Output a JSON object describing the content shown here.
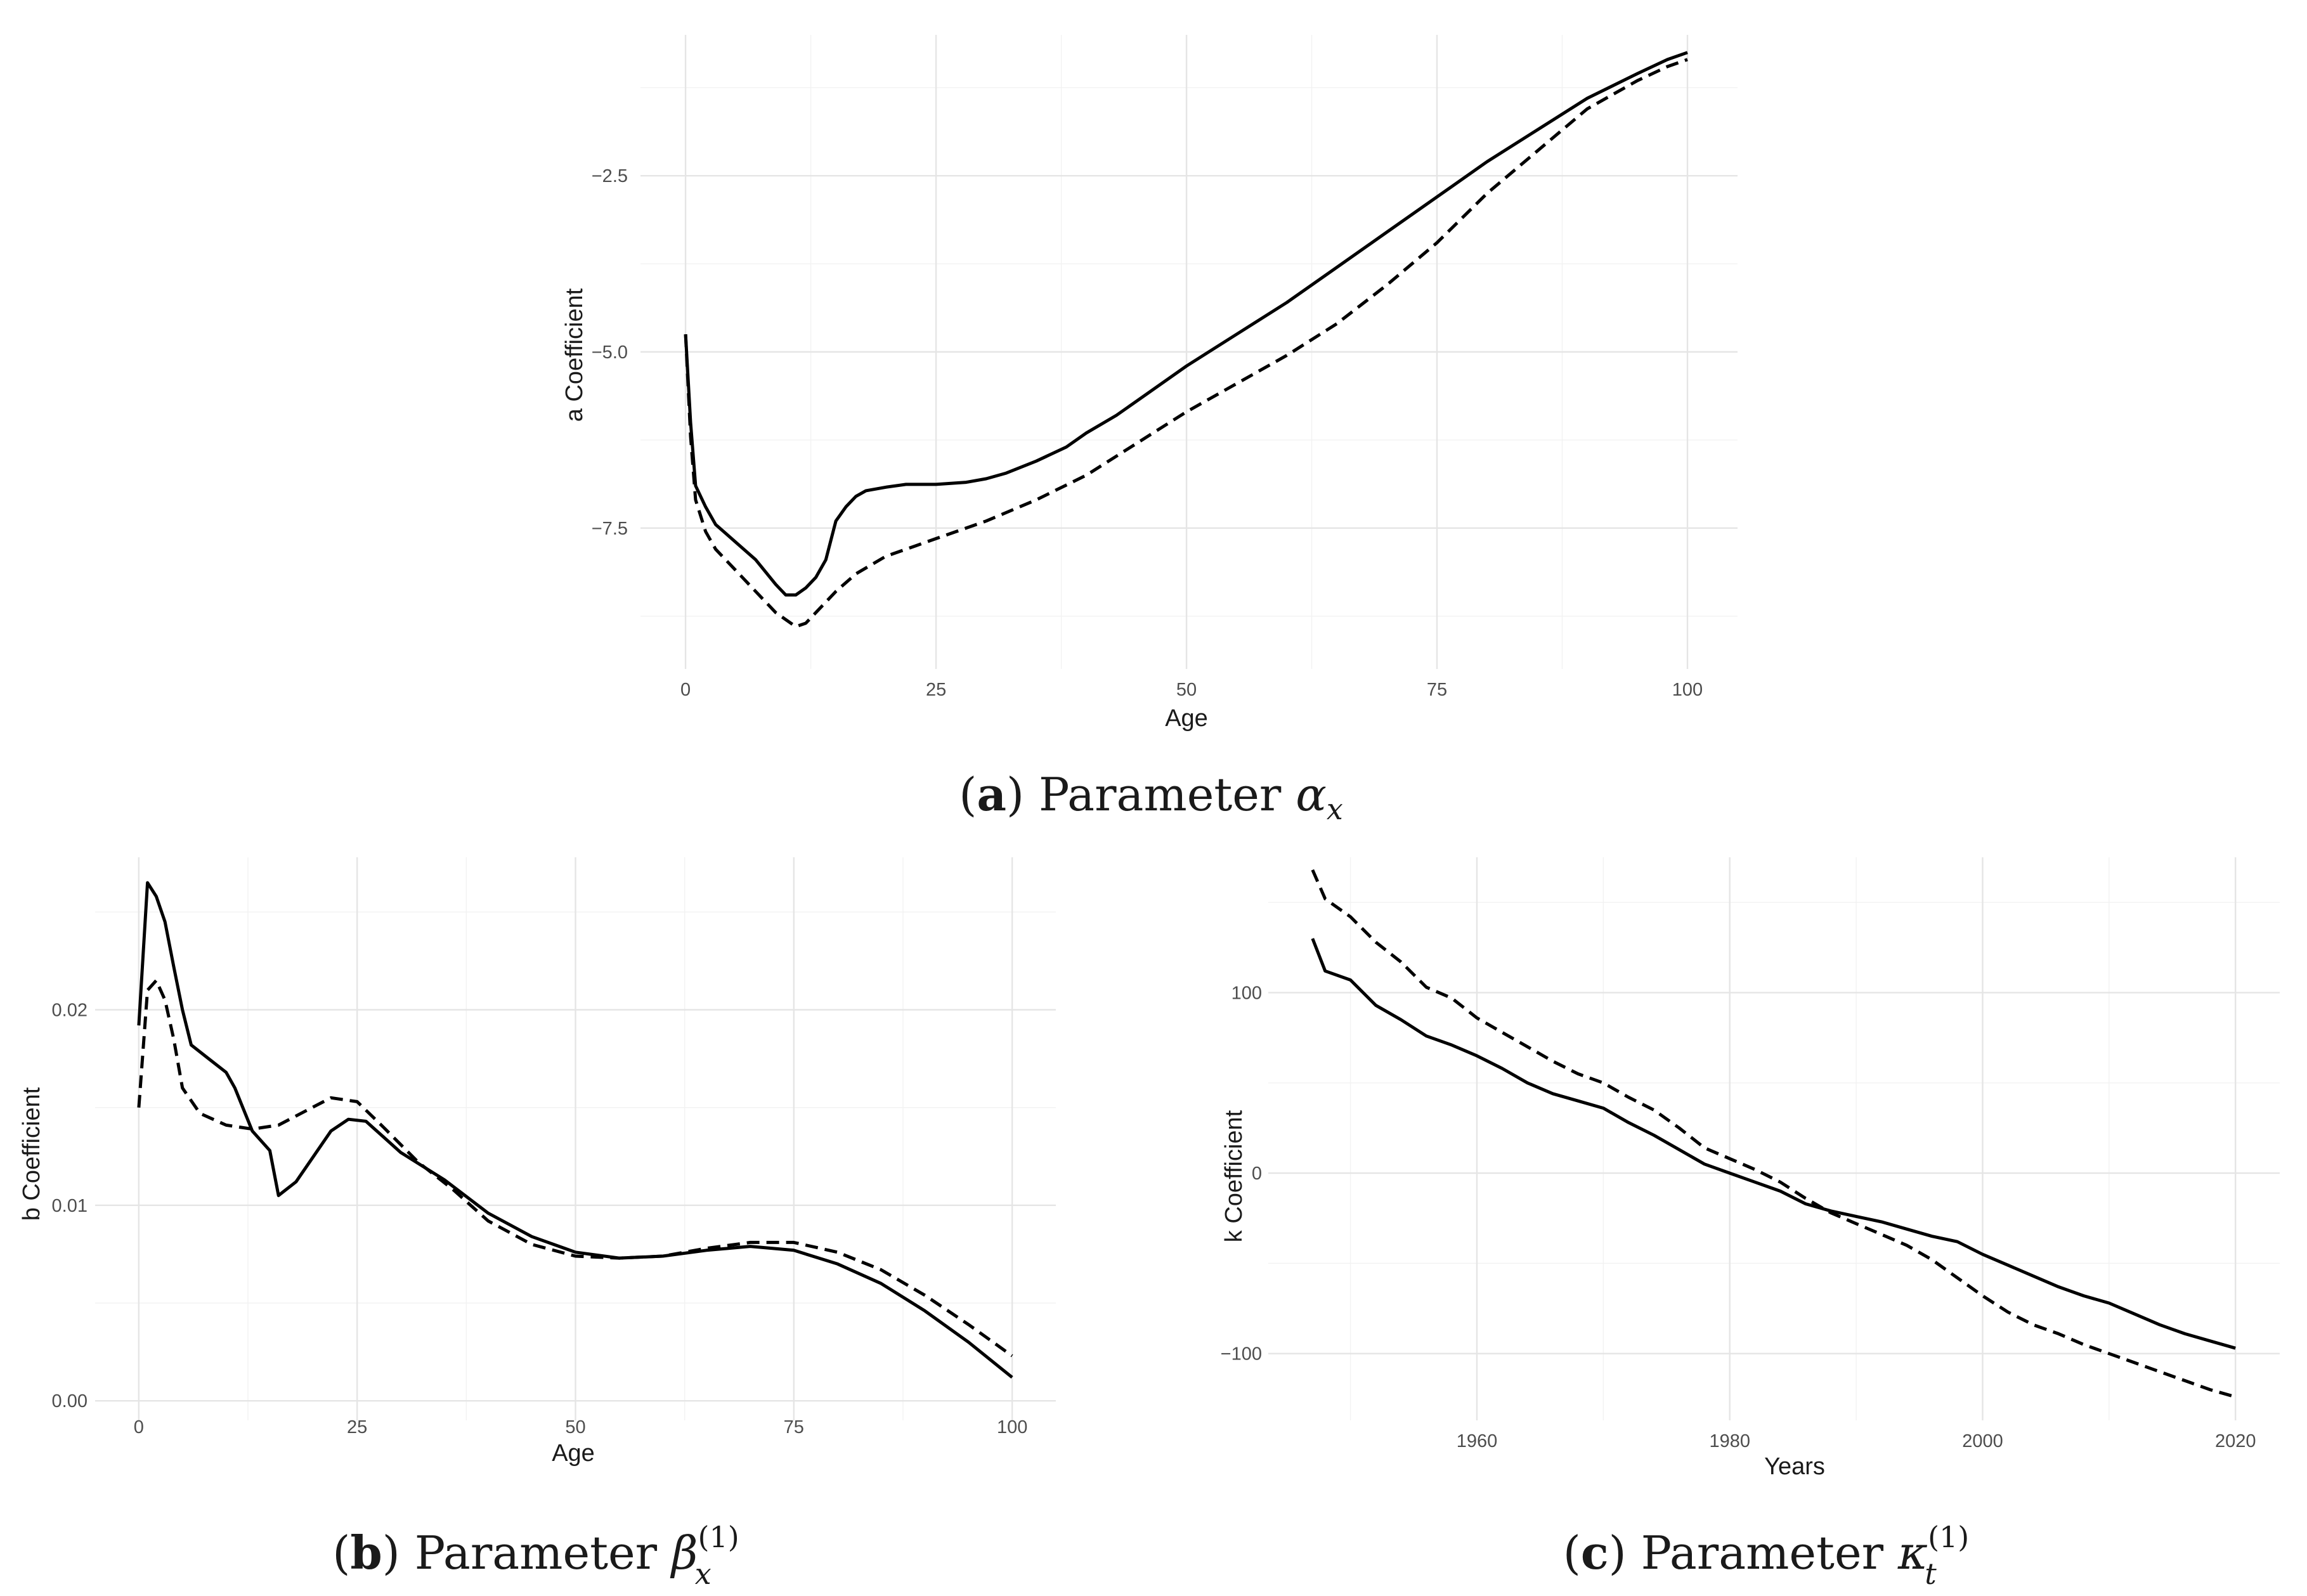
{
  "chart_data": [
    {
      "id": "a",
      "type": "line",
      "caption_letter": "a",
      "caption_text": "Parameter",
      "caption_symbol": "α",
      "caption_sub": "x",
      "caption_sup": "",
      "xlabel": "Age",
      "ylabel": "a Coefficient",
      "xlim": [
        -4.5,
        105
      ],
      "ylim": [
        -9.5,
        -0.5
      ],
      "x_ticks": [
        0,
        25,
        50,
        75,
        100
      ],
      "x_tick_labels": [
        "0",
        "25",
        "50",
        "75",
        "100"
      ],
      "y_ticks": [
        -2.5,
        -5.0,
        -7.5
      ],
      "y_tick_labels": [
        "−2.5",
        "−5.0",
        "−7.5"
      ],
      "grid": true,
      "series": [
        {
          "style": "solid",
          "points": [
            [
              0,
              -4.75
            ],
            [
              0.5,
              -6.0
            ],
            [
              1,
              -6.9
            ],
            [
              2,
              -7.2
            ],
            [
              3,
              -7.45
            ],
            [
              5,
              -7.7
            ],
            [
              7,
              -7.95
            ],
            [
              9,
              -8.3
            ],
            [
              10,
              -8.45
            ],
            [
              11,
              -8.45
            ],
            [
              12,
              -8.35
            ],
            [
              13,
              -8.2
            ],
            [
              14,
              -7.95
            ],
            [
              15,
              -7.4
            ],
            [
              16,
              -7.2
            ],
            [
              17,
              -7.05
            ],
            [
              18,
              -6.97
            ],
            [
              20,
              -6.92
            ],
            [
              22,
              -6.88
            ],
            [
              25,
              -6.88
            ],
            [
              28,
              -6.85
            ],
            [
              30,
              -6.8
            ],
            [
              32,
              -6.72
            ],
            [
              35,
              -6.55
            ],
            [
              38,
              -6.35
            ],
            [
              40,
              -6.15
            ],
            [
              43,
              -5.9
            ],
            [
              46,
              -5.6
            ],
            [
              50,
              -5.2
            ],
            [
              55,
              -4.75
            ],
            [
              60,
              -4.3
            ],
            [
              65,
              -3.8
            ],
            [
              70,
              -3.3
            ],
            [
              75,
              -2.8
            ],
            [
              80,
              -2.3
            ],
            [
              85,
              -1.85
            ],
            [
              90,
              -1.4
            ],
            [
              95,
              -1.05
            ],
            [
              98,
              -0.85
            ],
            [
              100,
              -0.75
            ]
          ]
        },
        {
          "style": "dashed",
          "points": [
            [
              0,
              -4.75
            ],
            [
              0.5,
              -6.2
            ],
            [
              1,
              -7.1
            ],
            [
              2,
              -7.55
            ],
            [
              3,
              -7.8
            ],
            [
              5,
              -8.1
            ],
            [
              7,
              -8.4
            ],
            [
              9,
              -8.7
            ],
            [
              10,
              -8.8
            ],
            [
              11,
              -8.9
            ],
            [
              12,
              -8.85
            ],
            [
              13,
              -8.7
            ],
            [
              15,
              -8.4
            ],
            [
              17,
              -8.15
            ],
            [
              20,
              -7.9
            ],
            [
              23,
              -7.75
            ],
            [
              25,
              -7.65
            ],
            [
              30,
              -7.4
            ],
            [
              35,
              -7.1
            ],
            [
              40,
              -6.75
            ],
            [
              45,
              -6.3
            ],
            [
              50,
              -5.85
            ],
            [
              55,
              -5.45
            ],
            [
              60,
              -5.05
            ],
            [
              65,
              -4.6
            ],
            [
              70,
              -4.05
            ],
            [
              75,
              -3.45
            ],
            [
              80,
              -2.75
            ],
            [
              85,
              -2.15
            ],
            [
              90,
              -1.55
            ],
            [
              95,
              -1.15
            ],
            [
              98,
              -0.95
            ],
            [
              100,
              -0.85
            ]
          ]
        }
      ]
    },
    {
      "id": "b",
      "type": "line",
      "caption_letter": "b",
      "caption_text": "Parameter",
      "caption_symbol": "β",
      "caption_sub": "x",
      "caption_sup": "(1)",
      "xlabel": "Age",
      "ylabel": "b Coefficient",
      "xlim": [
        -5,
        105
      ],
      "ylim": [
        -0.001,
        0.0278
      ],
      "x_ticks": [
        0,
        25,
        50,
        75,
        100
      ],
      "x_tick_labels": [
        "0",
        "25",
        "50",
        "75",
        "100"
      ],
      "y_ticks": [
        0.0,
        0.01,
        0.02
      ],
      "y_tick_labels": [
        "0.00",
        "0.01",
        "0.02"
      ],
      "grid": true,
      "series": [
        {
          "style": "solid",
          "points": [
            [
              0,
              0.0192
            ],
            [
              1,
              0.0265
            ],
            [
              2,
              0.0258
            ],
            [
              3,
              0.0245
            ],
            [
              4,
              0.0222
            ],
            [
              5,
              0.02
            ],
            [
              6,
              0.0182
            ],
            [
              8,
              0.0175
            ],
            [
              10,
              0.0168
            ],
            [
              11,
              0.016
            ],
            [
              13,
              0.0138
            ],
            [
              15,
              0.0128
            ],
            [
              16,
              0.0105
            ],
            [
              18,
              0.0112
            ],
            [
              20,
              0.0125
            ],
            [
              22,
              0.0138
            ],
            [
              24,
              0.0144
            ],
            [
              26,
              0.0143
            ],
            [
              28,
              0.0135
            ],
            [
              30,
              0.0127
            ],
            [
              35,
              0.0113
            ],
            [
              40,
              0.0096
            ],
            [
              45,
              0.0084
            ],
            [
              50,
              0.0076
            ],
            [
              55,
              0.0073
            ],
            [
              60,
              0.0074
            ],
            [
              65,
              0.0077
            ],
            [
              70,
              0.0079
            ],
            [
              75,
              0.0077
            ],
            [
              80,
              0.007
            ],
            [
              85,
              0.006
            ],
            [
              90,
              0.0046
            ],
            [
              95,
              0.003
            ],
            [
              100,
              0.0012
            ]
          ]
        },
        {
          "style": "dashed",
          "points": [
            [
              0,
              0.015
            ],
            [
              1,
              0.021
            ],
            [
              2,
              0.0215
            ],
            [
              3,
              0.0205
            ],
            [
              4,
              0.0185
            ],
            [
              5,
              0.016
            ],
            [
              7,
              0.0147
            ],
            [
              10,
              0.0141
            ],
            [
              13,
              0.0139
            ],
            [
              16,
              0.0141
            ],
            [
              19,
              0.0148
            ],
            [
              22,
              0.0155
            ],
            [
              25,
              0.0153
            ],
            [
              28,
              0.014
            ],
            [
              32,
              0.0122
            ],
            [
              36,
              0.0108
            ],
            [
              40,
              0.0092
            ],
            [
              45,
              0.008
            ],
            [
              50,
              0.0074
            ],
            [
              55,
              0.0073
            ],
            [
              60,
              0.0074
            ],
            [
              65,
              0.0078
            ],
            [
              70,
              0.0081
            ],
            [
              75,
              0.0081
            ],
            [
              80,
              0.0076
            ],
            [
              85,
              0.0067
            ],
            [
              90,
              0.0054
            ],
            [
              95,
              0.0039
            ],
            [
              100,
              0.0023
            ]
          ]
        }
      ]
    },
    {
      "id": "c",
      "type": "line",
      "caption_letter": "c",
      "caption_text": "Parameter",
      "caption_symbol": "κ",
      "caption_sub": "t",
      "caption_sup": "(1)",
      "xlabel": "Years",
      "ylabel": "k Coefficient",
      "xlim": [
        1943.5,
        2023.5
      ],
      "ylim": [
        -137,
        175
      ],
      "x_ticks": [
        1960,
        1980,
        2000,
        2020
      ],
      "x_tick_labels": [
        "1960",
        "1980",
        "2000",
        "2020"
      ],
      "y_ticks": [
        -100,
        0,
        100
      ],
      "y_tick_labels": [
        "−100",
        "0",
        "100"
      ],
      "grid": true,
      "series": [
        {
          "style": "solid",
          "points": [
            [
              1947,
              130
            ],
            [
              1948,
              112
            ],
            [
              1950,
              107
            ],
            [
              1952,
              93
            ],
            [
              1954,
              85
            ],
            [
              1956,
              76
            ],
            [
              1958,
              71
            ],
            [
              1960,
              65
            ],
            [
              1962,
              58
            ],
            [
              1964,
              50
            ],
            [
              1966,
              44
            ],
            [
              1968,
              40
            ],
            [
              1970,
              36
            ],
            [
              1972,
              28
            ],
            [
              1974,
              21
            ],
            [
              1976,
              13
            ],
            [
              1978,
              5
            ],
            [
              1980,
              0
            ],
            [
              1982,
              -5
            ],
            [
              1984,
              -10
            ],
            [
              1986,
              -17
            ],
            [
              1988,
              -21
            ],
            [
              1990,
              -24
            ],
            [
              1992,
              -27
            ],
            [
              1994,
              -31
            ],
            [
              1996,
              -35
            ],
            [
              1998,
              -38
            ],
            [
              2000,
              -45
            ],
            [
              2002,
              -51
            ],
            [
              2004,
              -57
            ],
            [
              2006,
              -63
            ],
            [
              2008,
              -68
            ],
            [
              2010,
              -72
            ],
            [
              2012,
              -78
            ],
            [
              2014,
              -84
            ],
            [
              2016,
              -89
            ],
            [
              2018,
              -93
            ],
            [
              2020,
              -97
            ]
          ]
        },
        {
          "style": "dashed",
          "points": [
            [
              1947,
              168
            ],
            [
              1948,
              152
            ],
            [
              1950,
              142
            ],
            [
              1952,
              128
            ],
            [
              1954,
              117
            ],
            [
              1956,
              103
            ],
            [
              1958,
              97
            ],
            [
              1960,
              86
            ],
            [
              1962,
              78
            ],
            [
              1964,
              70
            ],
            [
              1966,
              62
            ],
            [
              1968,
              55
            ],
            [
              1970,
              50
            ],
            [
              1972,
              42
            ],
            [
              1974,
              35
            ],
            [
              1976,
              25
            ],
            [
              1978,
              14
            ],
            [
              1980,
              8
            ],
            [
              1982,
              2
            ],
            [
              1984,
              -5
            ],
            [
              1986,
              -14
            ],
            [
              1988,
              -22
            ],
            [
              1990,
              -28
            ],
            [
              1992,
              -34
            ],
            [
              1994,
              -40
            ],
            [
              1996,
              -48
            ],
            [
              1998,
              -58
            ],
            [
              2000,
              -68
            ],
            [
              2002,
              -77
            ],
            [
              2004,
              -84
            ],
            [
              2006,
              -89
            ],
            [
              2008,
              -95
            ],
            [
              2010,
              -100
            ],
            [
              2012,
              -105
            ],
            [
              2014,
              -110
            ],
            [
              2016,
              -115
            ],
            [
              2018,
              -120
            ],
            [
              2020,
              -124
            ]
          ]
        }
      ]
    }
  ]
}
